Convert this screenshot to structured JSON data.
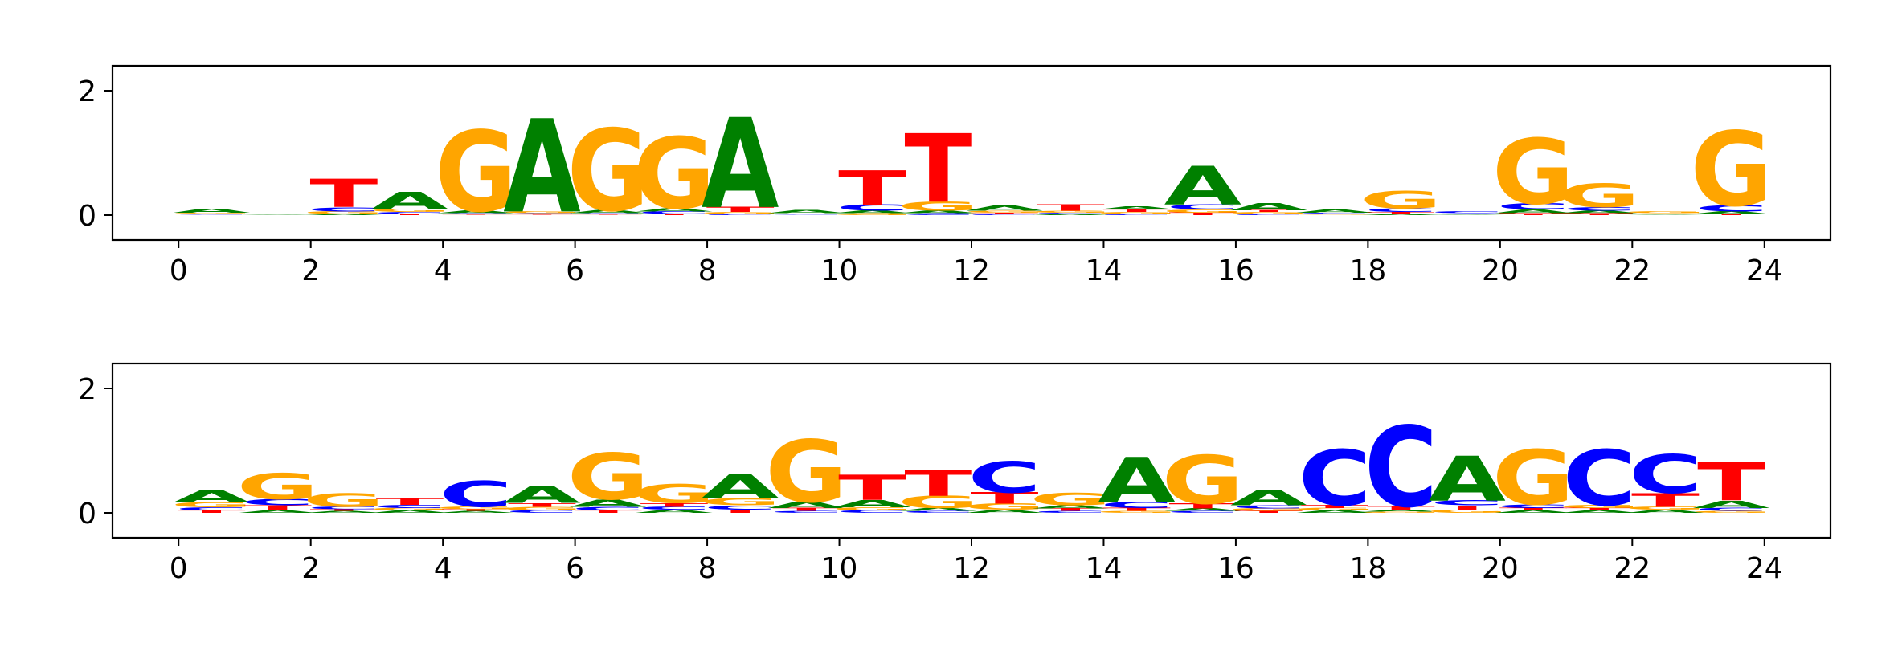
{
  "colors": {
    "A": "#008000",
    "C": "#0000ff",
    "G": "#ffa500",
    "T": "#ff0000"
  },
  "chart_data": [
    {
      "type": "sequence-logo",
      "panel": "top",
      "title": "",
      "xlabel": "",
      "ylabel": "",
      "xlim": [
        -1,
        25
      ],
      "ylim": [
        -0.4,
        2.4
      ],
      "xticks": [
        0,
        2,
        4,
        6,
        8,
        10,
        12,
        14,
        16,
        18,
        20,
        22,
        24
      ],
      "yticks": [
        0,
        2
      ],
      "grid": false,
      "positions": [
        {
          "x": 0,
          "A": 0.07,
          "C": 0.01,
          "G": 0.02,
          "T": 0.01
        },
        {
          "x": 1,
          "A": 0.01,
          "C": 0.0,
          "G": 0.0,
          "T": 0.0
        },
        {
          "x": 2,
          "A": 0.02,
          "C": 0.07,
          "G": 0.04,
          "T": 0.45
        },
        {
          "x": 3,
          "A": 0.28,
          "C": 0.03,
          "G": 0.05,
          "T": 0.02
        },
        {
          "x": 4,
          "A": 0.04,
          "C": 0.02,
          "G": 1.3,
          "T": 0.01
        },
        {
          "x": 5,
          "A": 1.5,
          "C": 0.02,
          "G": 0.03,
          "T": 0.01
        },
        {
          "x": 6,
          "A": 0.05,
          "C": 0.02,
          "G": 1.32,
          "T": 0.01
        },
        {
          "x": 7,
          "A": 0.05,
          "C": 0.04,
          "G": 1.15,
          "T": 0.02
        },
        {
          "x": 8,
          "A": 1.45,
          "C": 0.02,
          "G": 0.03,
          "T": 0.08
        },
        {
          "x": 9,
          "A": 0.05,
          "C": 0.01,
          "G": 0.01,
          "T": 0.01
        },
        {
          "x": 10,
          "A": 0.04,
          "C": 0.1,
          "G": 0.03,
          "T": 0.55
        },
        {
          "x": 11,
          "A": 0.04,
          "C": 0.03,
          "G": 0.15,
          "T": 1.1
        },
        {
          "x": 12,
          "A": 0.08,
          "C": 0.02,
          "G": 0.03,
          "T": 0.02
        },
        {
          "x": 13,
          "A": 0.02,
          "C": 0.02,
          "G": 0.03,
          "T": 0.1
        },
        {
          "x": 14,
          "A": 0.05,
          "C": 0.02,
          "G": 0.03,
          "T": 0.04
        },
        {
          "x": 15,
          "A": 0.62,
          "C": 0.08,
          "G": 0.05,
          "T": 0.04
        },
        {
          "x": 16,
          "A": 0.12,
          "C": 0.02,
          "G": 0.03,
          "T": 0.03
        },
        {
          "x": 17,
          "A": 0.05,
          "C": 0.02,
          "G": 0.01,
          "T": 0.01
        },
        {
          "x": 18,
          "A": 0.02,
          "C": 0.06,
          "G": 0.28,
          "T": 0.03
        },
        {
          "x": 19,
          "A": 0.01,
          "C": 0.03,
          "G": 0.01,
          "T": 0.01
        },
        {
          "x": 20,
          "A": 0.06,
          "C": 0.1,
          "G": 1.05,
          "T": 0.03
        },
        {
          "x": 21,
          "A": 0.04,
          "C": 0.06,
          "G": 0.38,
          "T": 0.03
        },
        {
          "x": 22,
          "A": 0.01,
          "C": 0.01,
          "G": 0.03,
          "T": 0.01
        },
        {
          "x": 23,
          "A": 0.04,
          "C": 0.1,
          "G": 1.2,
          "T": 0.02
        }
      ]
    },
    {
      "type": "sequence-logo",
      "panel": "bottom",
      "title": "",
      "xlabel": "",
      "ylabel": "",
      "xlim": [
        -1,
        25
      ],
      "ylim": [
        -0.4,
        2.4
      ],
      "xticks": [
        0,
        2,
        4,
        6,
        8,
        10,
        12,
        14,
        16,
        18,
        20,
        22,
        24
      ],
      "yticks": [
        0,
        2
      ],
      "grid": false,
      "positions": [
        {
          "x": 0,
          "A": 0.2,
          "C": 0.05,
          "G": 0.08,
          "T": 0.04
        },
        {
          "x": 1,
          "A": 0.04,
          "C": 0.1,
          "G": 0.42,
          "T": 0.08
        },
        {
          "x": 2,
          "A": 0.03,
          "C": 0.04,
          "G": 0.22,
          "T": 0.03
        },
        {
          "x": 3,
          "A": 0.04,
          "C": 0.05,
          "G": 0.04,
          "T": 0.12
        },
        {
          "x": 4,
          "A": 0.03,
          "C": 0.42,
          "G": 0.04,
          "T": 0.03
        },
        {
          "x": 5,
          "A": 0.28,
          "C": 0.04,
          "G": 0.06,
          "T": 0.06
        },
        {
          "x": 6,
          "A": 0.12,
          "C": 0.06,
          "G": 0.75,
          "T": 0.04
        },
        {
          "x": 7,
          "A": 0.05,
          "C": 0.05,
          "G": 0.3,
          "T": 0.06
        },
        {
          "x": 8,
          "A": 0.38,
          "C": 0.07,
          "G": 0.12,
          "T": 0.05
        },
        {
          "x": 9,
          "A": 0.1,
          "C": 0.03,
          "G": 1.0,
          "T": 0.05
        },
        {
          "x": 10,
          "A": 0.12,
          "C": 0.04,
          "G": 0.05,
          "T": 0.4
        },
        {
          "x": 11,
          "A": 0.05,
          "C": 0.03,
          "G": 0.2,
          "T": 0.42
        },
        {
          "x": 12,
          "A": 0.05,
          "C": 0.5,
          "G": 0.1,
          "T": 0.18
        },
        {
          "x": 13,
          "A": 0.05,
          "C": 0.03,
          "G": 0.2,
          "T": 0.04
        },
        {
          "x": 14,
          "A": 0.72,
          "C": 0.1,
          "G": 0.03,
          "T": 0.05
        },
        {
          "x": 15,
          "A": 0.04,
          "C": 0.03,
          "G": 0.78,
          "T": 0.08
        },
        {
          "x": 16,
          "A": 0.25,
          "C": 0.05,
          "G": 0.04,
          "T": 0.03
        },
        {
          "x": 17,
          "A": 0.04,
          "C": 0.9,
          "G": 0.04,
          "T": 0.05
        },
        {
          "x": 18,
          "A": 0.03,
          "C": 1.3,
          "G": 0.02,
          "T": 0.06
        },
        {
          "x": 19,
          "A": 0.72,
          "C": 0.08,
          "G": 0.05,
          "T": 0.07
        },
        {
          "x": 20,
          "A": 0.04,
          "C": 0.06,
          "G": 0.88,
          "T": 0.04
        },
        {
          "x": 21,
          "A": 0.04,
          "C": 0.9,
          "G": 0.05,
          "T": 0.04
        },
        {
          "x": 22,
          "A": 0.05,
          "C": 0.62,
          "G": 0.05,
          "T": 0.22
        },
        {
          "x": 23,
          "A": 0.12,
          "C": 0.05,
          "G": 0.03,
          "T": 0.62
        }
      ]
    }
  ]
}
